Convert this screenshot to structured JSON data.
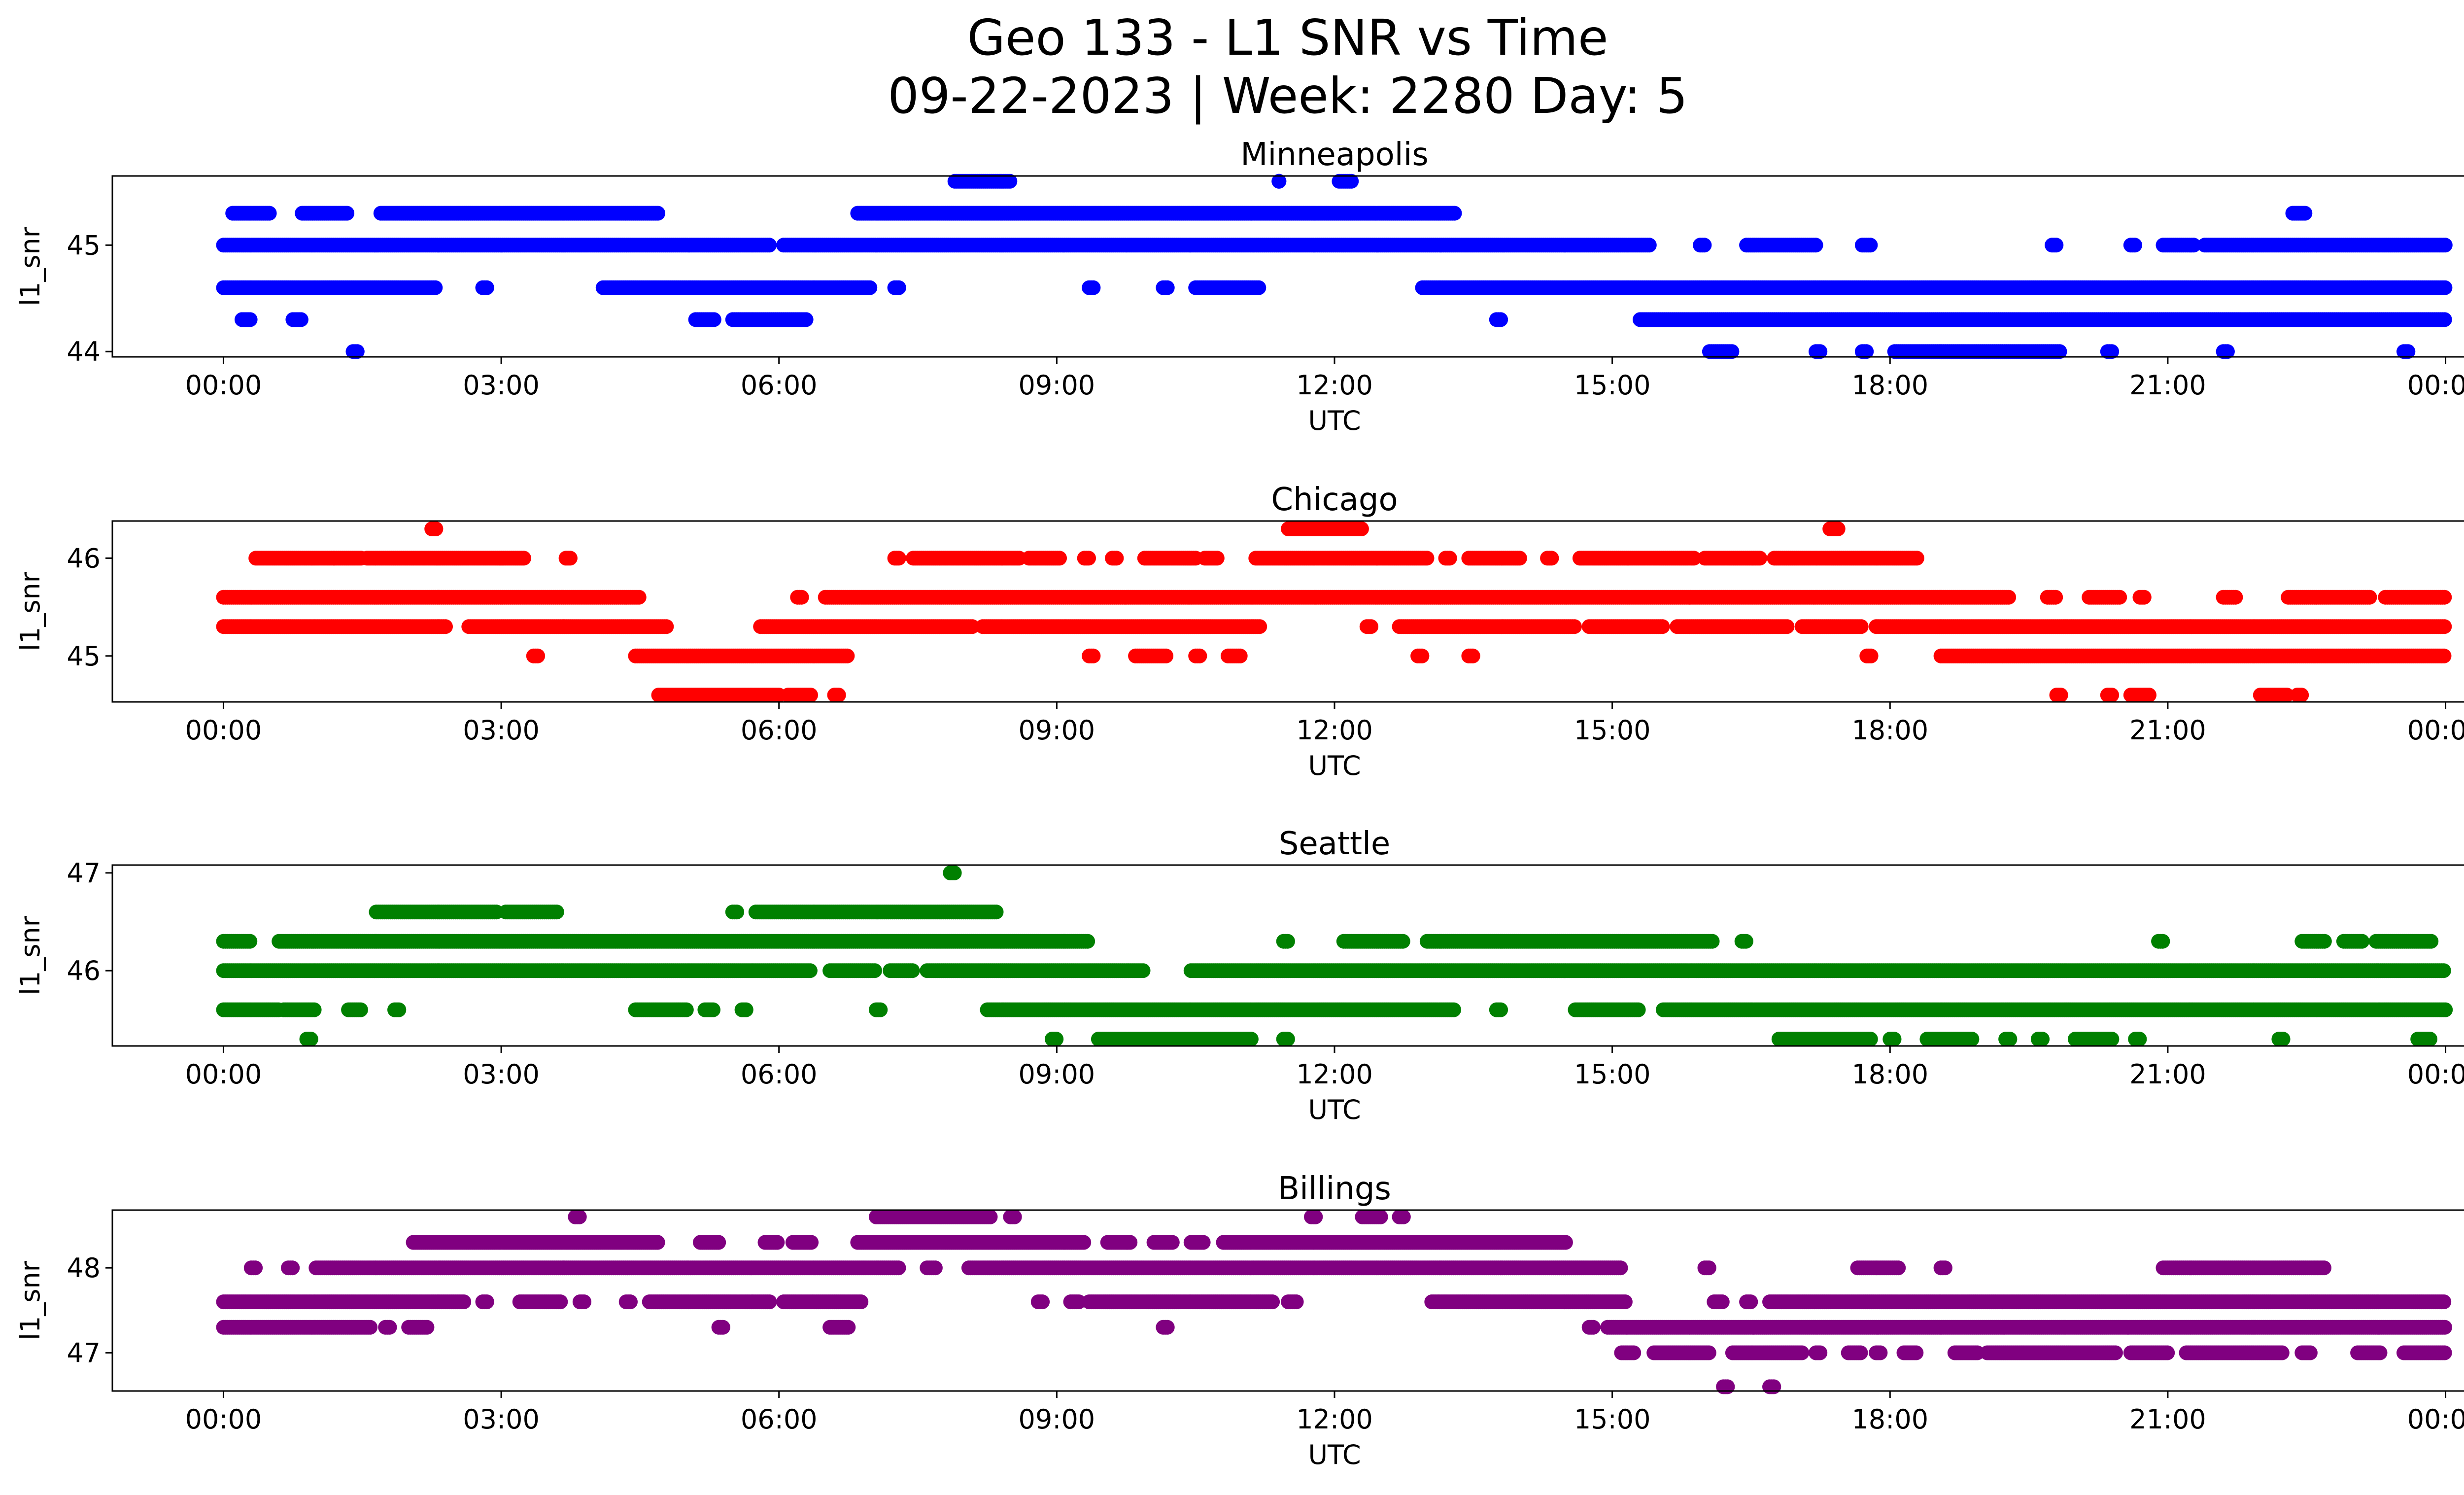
{
  "figure": {
    "title_line1": "Geo 133 - L1 SNR vs Time",
    "title_line2": "09-22-2023 | Week: 2280 Day: 5"
  },
  "chart_data": [
    {
      "type": "scatter",
      "title": "Minneapolis",
      "xlabel": "UTC",
      "ylabel": "l1_snr",
      "color": "#0000ff",
      "xticks": [
        "00:00",
        "03:00",
        "06:00",
        "09:00",
        "12:00",
        "15:00",
        "18:00",
        "21:00",
        "00:00"
      ],
      "yticks": [
        44,
        45
      ],
      "xlim": [
        -1.2,
        25.2
      ],
      "ylim": [
        43.95,
        45.65
      ],
      "x_unit": "hours UTC",
      "levels": [
        {
          "y": 45.6,
          "segments": [
            [
              7.9,
              8.5
            ],
            [
              11.4,
              11.4
            ],
            [
              12.05,
              12.2
            ]
          ]
        },
        {
          "y": 45.3,
          "segments": [
            [
              0.1,
              0.5
            ],
            [
              0.85,
              1.35
            ],
            [
              1.7,
              4.7
            ],
            [
              6.85,
              13.3
            ],
            [
              22.35,
              22.5
            ]
          ]
        },
        {
          "y": 45.0,
          "segments": [
            [
              0.0,
              5.9
            ],
            [
              6.05,
              15.4
            ],
            [
              15.95,
              16.0
            ],
            [
              16.45,
              17.2
            ],
            [
              17.7,
              17.8
            ],
            [
              19.75,
              19.8
            ],
            [
              20.6,
              20.65
            ],
            [
              20.95,
              21.3
            ],
            [
              21.4,
              24.0
            ]
          ]
        },
        {
          "y": 44.6,
          "segments": [
            [
              0.0,
              2.3
            ],
            [
              2.8,
              2.85
            ],
            [
              4.1,
              7.0
            ],
            [
              7.25,
              7.3
            ],
            [
              9.35,
              9.4
            ],
            [
              10.15,
              10.2
            ],
            [
              10.5,
              11.2
            ],
            [
              12.95,
              24.0
            ]
          ]
        },
        {
          "y": 44.3,
          "segments": [
            [
              0.2,
              0.3
            ],
            [
              0.75,
              0.85
            ],
            [
              5.1,
              5.3
            ],
            [
              5.5,
              6.3
            ],
            [
              13.75,
              13.8
            ],
            [
              15.3,
              24.0
            ]
          ]
        },
        {
          "y": 44.0,
          "segments": [
            [
              1.4,
              1.45
            ],
            [
              16.05,
              16.3
            ],
            [
              17.2,
              17.25
            ],
            [
              17.7,
              17.75
            ],
            [
              18.05,
              19.85
            ],
            [
              20.35,
              20.4
            ],
            [
              21.6,
              21.65
            ],
            [
              23.55,
              23.6
            ]
          ]
        }
      ]
    },
    {
      "type": "scatter",
      "title": "Chicago",
      "xlabel": "UTC",
      "ylabel": "l1_snr",
      "color": "#ff0000",
      "xticks": [
        "00:00",
        "03:00",
        "06:00",
        "09:00",
        "12:00",
        "15:00",
        "18:00",
        "21:00",
        "00:00"
      ],
      "yticks": [
        45,
        46
      ],
      "xlim": [
        -1.2,
        25.2
      ],
      "ylim": [
        44.53,
        46.38
      ],
      "x_unit": "hours UTC",
      "levels": [
        {
          "y": 46.3,
          "segments": [
            [
              2.25,
              2.3
            ],
            [
              11.5,
              12.3
            ],
            [
              17.35,
              17.45
            ]
          ]
        },
        {
          "y": 46.0,
          "segments": [
            [
              0.35,
              1.2
            ],
            [
              1.2,
              1.5
            ],
            [
              1.55,
              3.25
            ],
            [
              3.7,
              3.75
            ],
            [
              7.25,
              7.3
            ],
            [
              7.45,
              8.6
            ],
            [
              8.7,
              9.05
            ],
            [
              9.3,
              9.35
            ],
            [
              9.6,
              9.65
            ],
            [
              9.95,
              10.5
            ],
            [
              10.6,
              10.75
            ],
            [
              11.15,
              13.0
            ],
            [
              13.2,
              13.25
            ],
            [
              13.45,
              14.0
            ],
            [
              14.3,
              14.35
            ],
            [
              14.65,
              15.9
            ],
            [
              16.0,
              16.6
            ],
            [
              16.75,
              18.3
            ]
          ]
        },
        {
          "y": 45.6,
          "segments": [
            [
              0.0,
              4.5
            ],
            [
              6.2,
              6.25
            ],
            [
              6.5,
              19.3
            ],
            [
              19.7,
              19.8
            ],
            [
              20.15,
              20.5
            ],
            [
              20.7,
              20.75
            ],
            [
              21.6,
              21.75
            ],
            [
              22.3,
              23.2
            ],
            [
              23.35,
              24.0
            ]
          ]
        },
        {
          "y": 45.3,
          "segments": [
            [
              0.0,
              2.4
            ],
            [
              2.65,
              4.8
            ],
            [
              5.8,
              8.1
            ],
            [
              8.2,
              11.2
            ],
            [
              12.35,
              12.4
            ],
            [
              12.7,
              14.6
            ],
            [
              14.75,
              15.55
            ],
            [
              15.7,
              16.9
            ],
            [
              17.05,
              17.7
            ],
            [
              17.85,
              24.0
            ]
          ]
        },
        {
          "y": 45.0,
          "segments": [
            [
              3.35,
              3.4
            ],
            [
              4.45,
              6.75
            ],
            [
              9.35,
              9.4
            ],
            [
              9.85,
              10.2
            ],
            [
              10.5,
              10.55
            ],
            [
              10.85,
              11.0
            ],
            [
              12.9,
              12.95
            ],
            [
              13.45,
              13.5
            ],
            [
              17.75,
              17.8
            ],
            [
              18.55,
              24.0
            ]
          ]
        },
        {
          "y": 44.6,
          "segments": [
            [
              4.7,
              6.0
            ],
            [
              6.1,
              6.35
            ],
            [
              6.6,
              6.65
            ],
            [
              19.8,
              19.85
            ],
            [
              20.35,
              20.4
            ],
            [
              20.6,
              20.8
            ],
            [
              22.0,
              22.3
            ],
            [
              22.4,
              22.45
            ]
          ]
        }
      ]
    },
    {
      "type": "scatter",
      "title": "Seattle",
      "xlabel": "UTC",
      "ylabel": "l1_snr",
      "color": "#008000",
      "xticks": [
        "00:00",
        "03:00",
        "06:00",
        "09:00",
        "12:00",
        "15:00",
        "18:00",
        "21:00",
        "00:00"
      ],
      "yticks": [
        46,
        47
      ],
      "xlim": [
        -1.2,
        25.2
      ],
      "ylim": [
        45.23,
        47.08
      ],
      "x_unit": "hours UTC",
      "levels": [
        {
          "y": 47.0,
          "segments": [
            [
              7.85,
              7.9
            ]
          ]
        },
        {
          "y": 46.6,
          "segments": [
            [
              1.65,
              2.95
            ],
            [
              3.05,
              3.6
            ],
            [
              5.5,
              5.55
            ],
            [
              5.75,
              8.35
            ]
          ]
        },
        {
          "y": 46.3,
          "segments": [
            [
              0.0,
              0.3
            ],
            [
              0.6,
              9.35
            ],
            [
              11.45,
              11.5
            ],
            [
              12.1,
              12.75
            ],
            [
              13.0,
              16.1
            ],
            [
              16.4,
              16.45
            ],
            [
              20.9,
              20.95
            ],
            [
              22.45,
              22.7
            ],
            [
              22.9,
              23.1
            ],
            [
              23.25,
              23.85
            ]
          ]
        },
        {
          "y": 46.0,
          "segments": [
            [
              0.0,
              6.35
            ],
            [
              6.55,
              7.05
            ],
            [
              7.2,
              7.45
            ],
            [
              7.6,
              9.95
            ],
            [
              10.45,
              24.0
            ]
          ]
        },
        {
          "y": 45.6,
          "segments": [
            [
              0.0,
              0.6
            ],
            [
              0.65,
              1.0
            ],
            [
              1.35,
              1.5
            ],
            [
              1.85,
              1.9
            ],
            [
              4.45,
              5.0
            ],
            [
              5.2,
              5.3
            ],
            [
              5.6,
              5.65
            ],
            [
              7.05,
              7.1
            ],
            [
              8.25,
              13.3
            ],
            [
              13.75,
              13.8
            ],
            [
              14.6,
              15.3
            ],
            [
              15.55,
              24.0
            ]
          ]
        },
        {
          "y": 45.3,
          "segments": [
            [
              0.9,
              0.95
            ],
            [
              8.95,
              9.0
            ],
            [
              9.45,
              11.1
            ],
            [
              11.45,
              11.5
            ],
            [
              16.8,
              17.8
            ],
            [
              18.0,
              18.05
            ],
            [
              18.4,
              18.9
            ],
            [
              19.25,
              19.3
            ],
            [
              19.6,
              19.65
            ],
            [
              20.0,
              20.4
            ],
            [
              20.65,
              20.7
            ],
            [
              22.2,
              22.25
            ],
            [
              23.7,
              23.85
            ]
          ]
        }
      ]
    },
    {
      "type": "scatter",
      "title": "Billings",
      "xlabel": "UTC",
      "ylabel": "l1_snr",
      "color": "#800080",
      "xticks": [
        "00:00",
        "03:00",
        "06:00",
        "09:00",
        "12:00",
        "15:00",
        "18:00",
        "21:00",
        "00:00"
      ],
      "yticks": [
        47,
        48
      ],
      "xlim": [
        -1.2,
        25.2
      ],
      "ylim": [
        46.55,
        48.68
      ],
      "x_unit": "hours UTC",
      "levels": [
        {
          "y": 48.6,
          "segments": [
            [
              3.8,
              3.85
            ],
            [
              7.05,
              8.3
            ],
            [
              8.5,
              8.55
            ],
            [
              11.75,
              11.8
            ],
            [
              12.3,
              12.5
            ],
            [
              12.7,
              12.75
            ]
          ]
        },
        {
          "y": 48.3,
          "segments": [
            [
              2.05,
              4.7
            ],
            [
              5.15,
              5.35
            ],
            [
              5.85,
              6.0
            ],
            [
              6.15,
              6.35
            ],
            [
              6.85,
              9.3
            ],
            [
              9.55,
              9.8
            ],
            [
              10.05,
              10.25
            ],
            [
              10.45,
              10.6
            ],
            [
              10.8,
              14.5
            ]
          ]
        },
        {
          "y": 48.0,
          "segments": [
            [
              0.3,
              0.35
            ],
            [
              0.7,
              0.75
            ],
            [
              1.0,
              7.3
            ],
            [
              7.6,
              7.7
            ],
            [
              8.05,
              15.1
            ],
            [
              16.0,
              16.05
            ],
            [
              17.65,
              18.1
            ],
            [
              18.55,
              18.6
            ],
            [
              20.95,
              22.7
            ]
          ]
        },
        {
          "y": 47.6,
          "segments": [
            [
              0.0,
              2.6
            ],
            [
              2.8,
              2.85
            ],
            [
              3.2,
              3.65
            ],
            [
              3.85,
              3.9
            ],
            [
              4.35,
              4.4
            ],
            [
              4.6,
              5.9
            ],
            [
              6.05,
              6.9
            ],
            [
              8.8,
              8.85
            ],
            [
              9.15,
              9.25
            ],
            [
              9.35,
              11.35
            ],
            [
              11.5,
              11.6
            ],
            [
              13.05,
              15.15
            ],
            [
              16.1,
              16.2
            ],
            [
              16.45,
              16.5
            ],
            [
              16.7,
              24.0
            ]
          ]
        },
        {
          "y": 47.3,
          "segments": [
            [
              0.0,
              1.6
            ],
            [
              1.75,
              1.8
            ],
            [
              2.0,
              2.2
            ],
            [
              5.35,
              5.4
            ],
            [
              6.55,
              6.75
            ],
            [
              10.15,
              10.2
            ],
            [
              14.75,
              14.8
            ],
            [
              14.95,
              24.0
            ]
          ]
        },
        {
          "y": 47.0,
          "segments": [
            [
              15.1,
              15.25
            ],
            [
              15.45,
              16.05
            ],
            [
              16.3,
              17.05
            ],
            [
              17.2,
              17.25
            ],
            [
              17.55,
              17.7
            ],
            [
              17.85,
              17.9
            ],
            [
              18.15,
              18.3
            ],
            [
              18.7,
              18.95
            ],
            [
              19.05,
              20.45
            ],
            [
              20.6,
              21.0
            ],
            [
              21.2,
              22.25
            ],
            [
              22.45,
              22.55
            ],
            [
              23.05,
              23.3
            ],
            [
              23.55,
              24.0
            ]
          ]
        },
        {
          "y": 46.6,
          "segments": [
            [
              16.2,
              16.25
            ],
            [
              16.7,
              16.75
            ]
          ]
        }
      ]
    }
  ]
}
